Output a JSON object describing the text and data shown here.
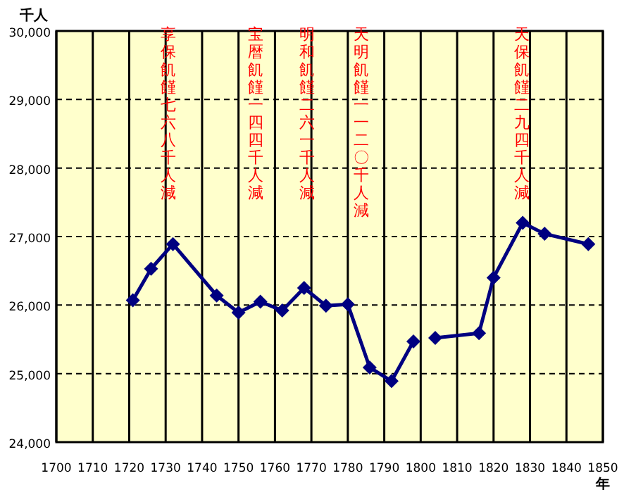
{
  "chart_data": {
    "type": "line",
    "ylabel": "千人",
    "xlabel": "年",
    "series": [
      {
        "color": "#000080",
        "x": [
          1721,
          1726,
          1732,
          1744,
          1750,
          1756,
          1762,
          1768,
          1774,
          1780,
          1786,
          1792,
          1798
        ],
        "values": [
          26070,
          26530,
          26890,
          26140,
          25890,
          26050,
          25920,
          26250,
          25990,
          26010,
          25090,
          24890,
          25470
        ]
      },
      {
        "color": "#000080",
        "x": [
          1804,
          1816,
          1820,
          1828,
          1834,
          1846
        ],
        "values": [
          25520,
          25590,
          26400,
          27200,
          27040,
          26890
        ]
      }
    ],
    "xlim": [
      1700,
      1850
    ],
    "xticks": [
      1700,
      1710,
      1720,
      1730,
      1740,
      1750,
      1760,
      1770,
      1780,
      1790,
      1800,
      1810,
      1820,
      1830,
      1840,
      1850
    ],
    "ylim": [
      24000,
      30000
    ],
    "yticks": [
      {
        "value": 24000,
        "label": "24,000"
      },
      {
        "value": 25000,
        "label": "25,000"
      },
      {
        "value": 26000,
        "label": "26,000"
      },
      {
        "value": 27000,
        "label": "27,000"
      },
      {
        "value": 28000,
        "label": "28,000"
      },
      {
        "value": 29000,
        "label": "29,000"
      },
      {
        "value": 30000,
        "label": "30,000"
      }
    ],
    "grid": true,
    "marker": "diamond",
    "line_style": "solid",
    "annotations": [
      "享保飢饉七六八千人減",
      "宝暦飢饉一四四千人減",
      "明和飢饉二六一千人減",
      "天明飢饉一一二〇千人減",
      "天保飢饉二九四千人減"
    ]
  }
}
